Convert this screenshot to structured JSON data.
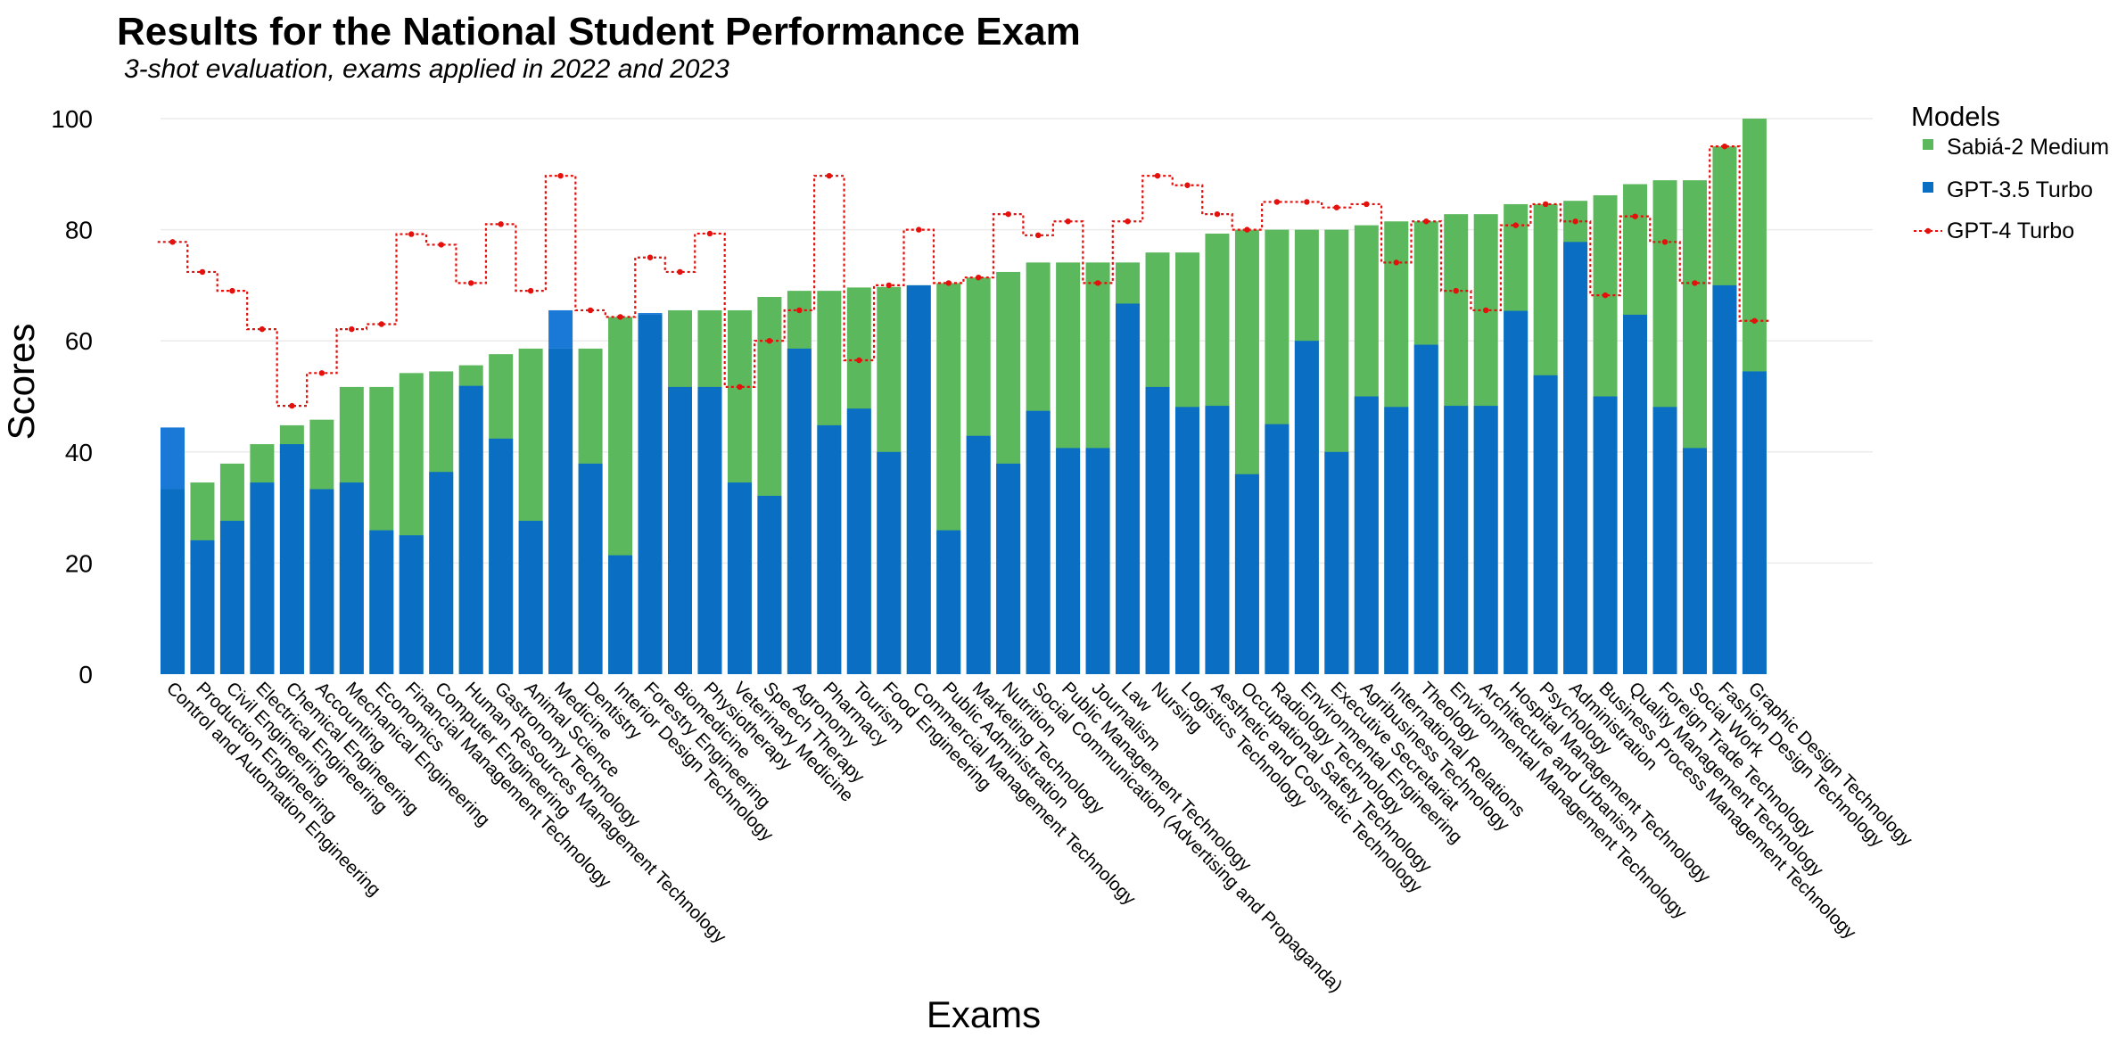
{
  "chart_data": {
    "type": "bar",
    "title": "Results for the National Student Performance Exam",
    "subtitle": "3-shot evaluation, exams applied in 2022 and 2023",
    "xlabel": "Exams",
    "ylabel": "Scores",
    "ylim": [
      0,
      100
    ],
    "yticks": [
      "0",
      "20",
      "40",
      "60",
      "80",
      "100"
    ],
    "legend": {
      "title": "Models",
      "position": "right",
      "entries": [
        "Sabiá-2 Medium",
        "GPT-3.5 Turbo",
        "GPT-4 Turbo"
      ]
    },
    "colors": {
      "sabia": "#5cb85c",
      "gpt35": "#0a6fc2",
      "gpt35_over": "#1a78d6",
      "gpt4": "#e3100c"
    },
    "categories": [
      "Control and Automation Engineering",
      "Production Engineering",
      "Civil Engineering",
      "Electrical Engineering",
      "Chemical Engineering",
      "Accounting",
      "Mechanical Engineering",
      "Economics",
      "Financial Management Technology",
      "Computer Engineering",
      "Human Resources Management Technology",
      "Gastronomy Technology",
      "Animal Science",
      "Medicine",
      "Dentistry",
      "Interior Design Technology",
      "Forestry Engineering",
      "Biomedicine",
      "Physiotherapy",
      "Veterinary Medicine",
      "Speech Therapy",
      "Agronomy",
      "Pharmacy",
      "Tourism",
      "Food Engineering",
      "Commercial Management Technology",
      "Public Administration",
      "Marketing Technology",
      "Nutrition",
      "Social Communication (Advertising and Propaganda)",
      "Public Management Technology",
      "Journalism",
      "Law",
      "Nursing",
      "Logistics Technology",
      "Aesthetic and Cosmetic Technology",
      "Occupational Safety Technology",
      "Radiology Technology",
      "Environmental Engineering",
      "Executive Secretariat",
      "Agribusiness Technology",
      "International Relations",
      "Theology",
      "Environmental Management Technology",
      "Architecture and Urbanism",
      "Hospital Management Technology",
      "Psychology",
      "Administration",
      "Business Process Management Technology",
      "Quality Management Technology",
      "Foreign Trade Technology",
      "Social Work",
      "Fashion Design Technology",
      "Graphic Design Technology"
    ],
    "series": [
      {
        "name": "Sabiá-2 Medium",
        "type": "bar",
        "values": [
          33.3,
          34.5,
          37.9,
          41.4,
          44.8,
          45.8,
          51.7,
          51.7,
          54.2,
          54.5,
          55.6,
          57.6,
          58.6,
          58.6,
          58.6,
          64.3,
          64.7,
          65.5,
          65.5,
          65.5,
          67.9,
          69.0,
          69.0,
          69.6,
          69.7,
          70.0,
          70.4,
          71.4,
          72.4,
          74.1,
          74.1,
          74.1,
          74.1,
          75.9,
          75.9,
          79.3,
          80.0,
          80.0,
          80.0,
          80.0,
          80.8,
          81.5,
          81.5,
          82.8,
          82.8,
          84.6,
          84.6,
          85.2,
          86.2,
          88.2,
          88.9,
          88.9,
          95.0,
          100.0
        ]
      },
      {
        "name": "GPT-3.5 Turbo",
        "type": "bar",
        "values": [
          44.4,
          24.1,
          27.6,
          34.5,
          41.4,
          33.3,
          34.5,
          25.9,
          25.0,
          36.4,
          51.9,
          42.4,
          27.6,
          65.5,
          37.9,
          21.4,
          65.0,
          51.7,
          51.7,
          34.5,
          32.1,
          58.6,
          44.8,
          47.8,
          40.0,
          70.0,
          25.9,
          42.9,
          37.9,
          47.4,
          40.7,
          40.7,
          66.7,
          51.7,
          48.1,
          48.3,
          36.0,
          45.0,
          60.0,
          40.0,
          50.0,
          48.1,
          59.3,
          48.3,
          48.3,
          65.4,
          53.8,
          77.8,
          50.0,
          64.7,
          48.1,
          40.7,
          70.0,
          54.5
        ]
      },
      {
        "name": "GPT-4 Turbo",
        "type": "step",
        "values": [
          77.8,
          72.4,
          69.0,
          62.1,
          48.3,
          54.2,
          62.1,
          63.0,
          79.2,
          77.3,
          70.4,
          81.0,
          69.0,
          89.7,
          65.5,
          64.3,
          75.0,
          72.4,
          79.3,
          51.7,
          60.0,
          65.5,
          89.7,
          56.5,
          70.0,
          80.0,
          70.4,
          71.4,
          82.8,
          79.0,
          81.5,
          70.4,
          81.5,
          89.7,
          88.0,
          82.8,
          80.0,
          85.0,
          85.0,
          84.0,
          84.6,
          74.1,
          81.5,
          69.0,
          65.5,
          80.8,
          84.6,
          81.5,
          68.2,
          82.4,
          77.8,
          70.4,
          95.0,
          63.6
        ]
      }
    ]
  }
}
